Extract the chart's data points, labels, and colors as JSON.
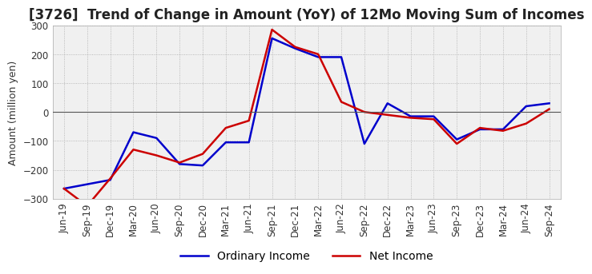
{
  "title": "[3726]  Trend of Change in Amount (YoY) of 12Mo Moving Sum of Incomes",
  "ylabel": "Amount (million yen)",
  "ylim": [
    -300,
    300
  ],
  "yticks": [
    -300,
    -200,
    -100,
    0,
    100,
    200,
    300
  ],
  "x_labels": [
    "Jun-19",
    "Sep-19",
    "Dec-19",
    "Mar-20",
    "Jun-20",
    "Sep-20",
    "Dec-20",
    "Mar-21",
    "Jun-21",
    "Sep-21",
    "Dec-21",
    "Mar-22",
    "Jun-22",
    "Sep-22",
    "Dec-22",
    "Mar-23",
    "Jun-23",
    "Sep-23",
    "Dec-23",
    "Mar-24",
    "Jun-24",
    "Sep-24"
  ],
  "ordinary_income": [
    -265,
    -250,
    -235,
    -70,
    -90,
    -180,
    -185,
    -105,
    -105,
    255,
    220,
    190,
    190,
    -110,
    30,
    -15,
    -15,
    -95,
    -60,
    -60,
    20,
    30
  ],
  "net_income": [
    -265,
    -325,
    -230,
    -130,
    -150,
    -175,
    -145,
    -55,
    -30,
    285,
    225,
    200,
    35,
    0,
    -10,
    -20,
    -25,
    -110,
    -55,
    -65,
    -40,
    10
  ],
  "ordinary_color": "#0000cc",
  "net_color": "#cc0000",
  "background_color": "#ffffff",
  "plot_bg_color": "#f0f0f0",
  "grid_color": "#aaaaaa",
  "zero_line_color": "#555555",
  "title_fontsize": 12,
  "label_fontsize": 9,
  "tick_fontsize": 8.5,
  "legend_fontsize": 10
}
